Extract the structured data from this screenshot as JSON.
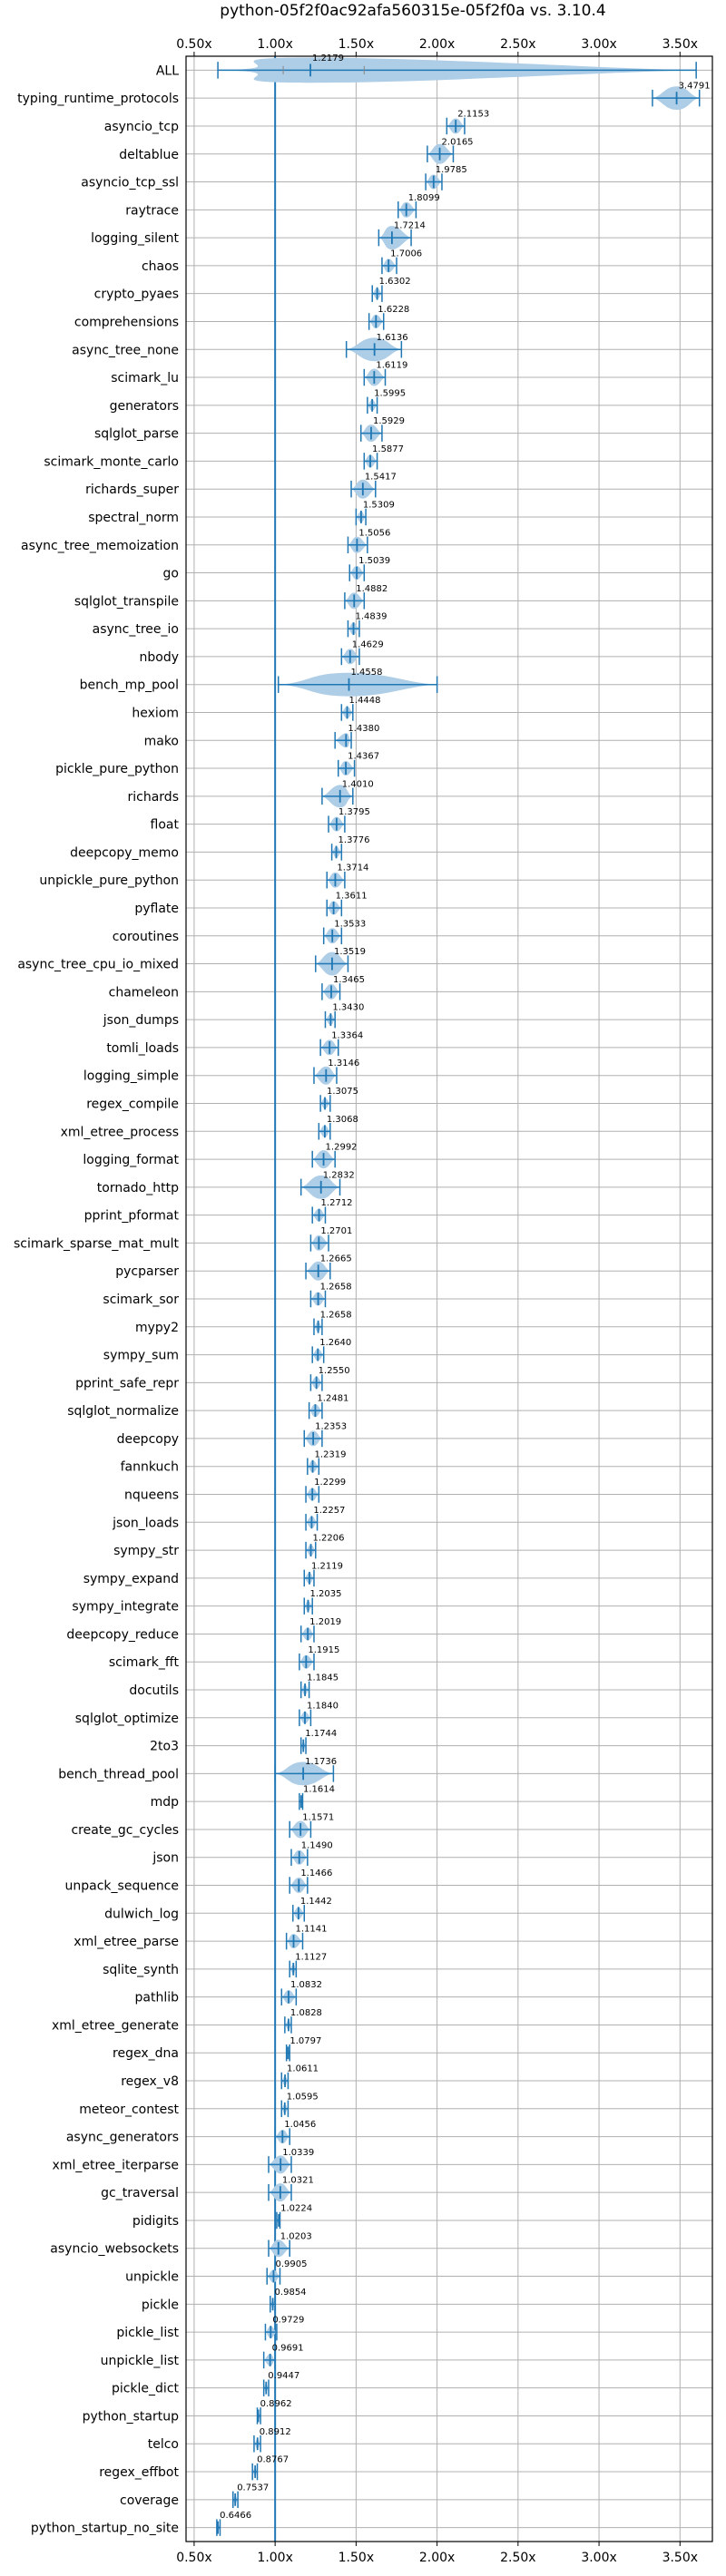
{
  "chart_data": {
    "type": "violin",
    "title": "python-05f2f0ac92afa560315e-05f2f0a vs. 3.10.4",
    "xlim": [
      0.45,
      3.7
    ],
    "xticks": [
      0.5,
      1.0,
      1.5,
      2.0,
      2.5,
      3.0,
      3.5
    ],
    "xtick_labels": [
      "0.50x",
      "1.00x",
      "1.50x",
      "2.00x",
      "2.50x",
      "3.00x",
      "3.50x"
    ],
    "reference_line": 1.0,
    "grid": true,
    "series_color": "#1f77b4",
    "violin_color": "#aecde6",
    "rows": [
      {
        "name": "ALL",
        "value": 1.2179,
        "value_label": "1.2179",
        "min": 0.6466,
        "max": 3.6,
        "q1": 1.05,
        "q3": 1.55
      },
      {
        "name": "typing_runtime_protocols",
        "value": 3.4791,
        "value_label": "3.4791",
        "min": 3.33,
        "max": 3.62
      },
      {
        "name": "asyncio_tcp",
        "value": 2.1153,
        "value_label": "2.1153",
        "min": 2.06,
        "max": 2.17
      },
      {
        "name": "deltablue",
        "value": 2.0165,
        "value_label": "2.0165",
        "min": 1.94,
        "max": 2.1
      },
      {
        "name": "asyncio_tcp_ssl",
        "value": 1.9785,
        "value_label": "1.9785",
        "min": 1.93,
        "max": 2.03
      },
      {
        "name": "raytrace",
        "value": 1.8099,
        "value_label": "1.8099",
        "min": 1.76,
        "max": 1.87
      },
      {
        "name": "logging_silent",
        "value": 1.7214,
        "value_label": "1.7214",
        "min": 1.64,
        "max": 1.84
      },
      {
        "name": "chaos",
        "value": 1.7006,
        "value_label": "1.7006",
        "min": 1.66,
        "max": 1.75
      },
      {
        "name": "crypto_pyaes",
        "value": 1.6302,
        "value_label": "1.6302",
        "min": 1.6,
        "max": 1.66
      },
      {
        "name": "comprehensions",
        "value": 1.6228,
        "value_label": "1.6228",
        "min": 1.58,
        "max": 1.67
      },
      {
        "name": "async_tree_none",
        "value": 1.6136,
        "value_label": "1.6136",
        "min": 1.44,
        "max": 1.78
      },
      {
        "name": "scimark_lu",
        "value": 1.6119,
        "value_label": "1.6119",
        "min": 1.55,
        "max": 1.68
      },
      {
        "name": "generators",
        "value": 1.5995,
        "value_label": "1.5995",
        "min": 1.57,
        "max": 1.63
      },
      {
        "name": "sqlglot_parse",
        "value": 1.5929,
        "value_label": "1.5929",
        "min": 1.53,
        "max": 1.66
      },
      {
        "name": "scimark_monte_carlo",
        "value": 1.5877,
        "value_label": "1.5877",
        "min": 1.55,
        "max": 1.63
      },
      {
        "name": "richards_super",
        "value": 1.5417,
        "value_label": "1.5417",
        "min": 1.47,
        "max": 1.62
      },
      {
        "name": "spectral_norm",
        "value": 1.5309,
        "value_label": "1.5309",
        "min": 1.5,
        "max": 1.56
      },
      {
        "name": "async_tree_memoization",
        "value": 1.5056,
        "value_label": "1.5056",
        "min": 1.45,
        "max": 1.57
      },
      {
        "name": "go",
        "value": 1.5039,
        "value_label": "1.5039",
        "min": 1.46,
        "max": 1.55
      },
      {
        "name": "sqlglot_transpile",
        "value": 1.4882,
        "value_label": "1.4882",
        "min": 1.43,
        "max": 1.55
      },
      {
        "name": "async_tree_io",
        "value": 1.4839,
        "value_label": "1.4839",
        "min": 1.45,
        "max": 1.52
      },
      {
        "name": "nbody",
        "value": 1.4629,
        "value_label": "1.4629",
        "min": 1.41,
        "max": 1.52
      },
      {
        "name": "bench_mp_pool",
        "value": 1.4558,
        "value_label": "1.4558",
        "min": 1.02,
        "max": 2.0
      },
      {
        "name": "hexiom",
        "value": 1.4448,
        "value_label": "1.4448",
        "min": 1.41,
        "max": 1.48
      },
      {
        "name": "mako",
        "value": 1.438,
        "value_label": "1.4380",
        "min": 1.37,
        "max": 1.47
      },
      {
        "name": "pickle_pure_python",
        "value": 1.4367,
        "value_label": "1.4367",
        "min": 1.39,
        "max": 1.49
      },
      {
        "name": "richards",
        "value": 1.401,
        "value_label": "1.4010",
        "min": 1.29,
        "max": 1.48
      },
      {
        "name": "float",
        "value": 1.3795,
        "value_label": "1.3795",
        "min": 1.33,
        "max": 1.43
      },
      {
        "name": "deepcopy_memo",
        "value": 1.3776,
        "value_label": "1.3776",
        "min": 1.35,
        "max": 1.41
      },
      {
        "name": "unpickle_pure_python",
        "value": 1.3714,
        "value_label": "1.3714",
        "min": 1.32,
        "max": 1.43
      },
      {
        "name": "pyflate",
        "value": 1.3611,
        "value_label": "1.3611",
        "min": 1.32,
        "max": 1.41
      },
      {
        "name": "coroutines",
        "value": 1.3533,
        "value_label": "1.3533",
        "min": 1.3,
        "max": 1.41
      },
      {
        "name": "async_tree_cpu_io_mixed",
        "value": 1.3519,
        "value_label": "1.3519",
        "min": 1.25,
        "max": 1.45
      },
      {
        "name": "chameleon",
        "value": 1.3465,
        "value_label": "1.3465",
        "min": 1.29,
        "max": 1.4
      },
      {
        "name": "json_dumps",
        "value": 1.343,
        "value_label": "1.3430",
        "min": 1.31,
        "max": 1.37
      },
      {
        "name": "tomli_loads",
        "value": 1.3364,
        "value_label": "1.3364",
        "min": 1.28,
        "max": 1.39
      },
      {
        "name": "logging_simple",
        "value": 1.3146,
        "value_label": "1.3146",
        "min": 1.24,
        "max": 1.38
      },
      {
        "name": "regex_compile",
        "value": 1.3075,
        "value_label": "1.3075",
        "min": 1.28,
        "max": 1.34
      },
      {
        "name": "xml_etree_process",
        "value": 1.3068,
        "value_label": "1.3068",
        "min": 1.27,
        "max": 1.34
      },
      {
        "name": "logging_format",
        "value": 1.2992,
        "value_label": "1.2992",
        "min": 1.23,
        "max": 1.37
      },
      {
        "name": "tornado_http",
        "value": 1.2832,
        "value_label": "1.2832",
        "min": 1.16,
        "max": 1.4
      },
      {
        "name": "pprint_pformat",
        "value": 1.2712,
        "value_label": "1.2712",
        "min": 1.23,
        "max": 1.31
      },
      {
        "name": "scimark_sparse_mat_mult",
        "value": 1.2701,
        "value_label": "1.2701",
        "min": 1.22,
        "max": 1.33
      },
      {
        "name": "pycparser",
        "value": 1.2665,
        "value_label": "1.2665",
        "min": 1.19,
        "max": 1.34
      },
      {
        "name": "scimark_sor",
        "value": 1.2658,
        "value_label": "1.2658",
        "min": 1.22,
        "max": 1.31
      },
      {
        "name": "mypy2",
        "value": 1.2658,
        "value_label": "1.2658",
        "min": 1.24,
        "max": 1.29
      },
      {
        "name": "sympy_sum",
        "value": 1.264,
        "value_label": "1.2640",
        "min": 1.23,
        "max": 1.3
      },
      {
        "name": "pprint_safe_repr",
        "value": 1.255,
        "value_label": "1.2550",
        "min": 1.22,
        "max": 1.29
      },
      {
        "name": "sqlglot_normalize",
        "value": 1.2481,
        "value_label": "1.2481",
        "min": 1.21,
        "max": 1.29
      },
      {
        "name": "deepcopy",
        "value": 1.2353,
        "value_label": "1.2353",
        "min": 1.18,
        "max": 1.29
      },
      {
        "name": "fannkuch",
        "value": 1.2319,
        "value_label": "1.2319",
        "min": 1.2,
        "max": 1.27
      },
      {
        "name": "nqueens",
        "value": 1.2299,
        "value_label": "1.2299",
        "min": 1.19,
        "max": 1.27
      },
      {
        "name": "json_loads",
        "value": 1.2257,
        "value_label": "1.2257",
        "min": 1.19,
        "max": 1.26
      },
      {
        "name": "sympy_str",
        "value": 1.2206,
        "value_label": "1.2206",
        "min": 1.19,
        "max": 1.25
      },
      {
        "name": "sympy_expand",
        "value": 1.2119,
        "value_label": "1.2119",
        "min": 1.18,
        "max": 1.24
      },
      {
        "name": "sympy_integrate",
        "value": 1.2035,
        "value_label": "1.2035",
        "min": 1.18,
        "max": 1.23
      },
      {
        "name": "deepcopy_reduce",
        "value": 1.2019,
        "value_label": "1.2019",
        "min": 1.16,
        "max": 1.24
      },
      {
        "name": "scimark_fft",
        "value": 1.1915,
        "value_label": "1.1915",
        "min": 1.15,
        "max": 1.24
      },
      {
        "name": "docutils",
        "value": 1.1845,
        "value_label": "1.1845",
        "min": 1.16,
        "max": 1.21
      },
      {
        "name": "sqlglot_optimize",
        "value": 1.184,
        "value_label": "1.1840",
        "min": 1.15,
        "max": 1.22
      },
      {
        "name": "2to3",
        "value": 1.1744,
        "value_label": "1.1744",
        "min": 1.16,
        "max": 1.19
      },
      {
        "name": "bench_thread_pool",
        "value": 1.1736,
        "value_label": "1.1736",
        "min": 1.0,
        "max": 1.36
      },
      {
        "name": "mdp",
        "value": 1.1614,
        "value_label": "1.1614",
        "min": 1.15,
        "max": 1.17
      },
      {
        "name": "create_gc_cycles",
        "value": 1.1571,
        "value_label": "1.1571",
        "min": 1.09,
        "max": 1.22
      },
      {
        "name": "json",
        "value": 1.149,
        "value_label": "1.1490",
        "min": 1.1,
        "max": 1.2
      },
      {
        "name": "unpack_sequence",
        "value": 1.1466,
        "value_label": "1.1466",
        "min": 1.09,
        "max": 1.2
      },
      {
        "name": "dulwich_log",
        "value": 1.1442,
        "value_label": "1.1442",
        "min": 1.11,
        "max": 1.18
      },
      {
        "name": "xml_etree_parse",
        "value": 1.1141,
        "value_label": "1.1141",
        "min": 1.07,
        "max": 1.17
      },
      {
        "name": "sqlite_synth",
        "value": 1.1127,
        "value_label": "1.1127",
        "min": 1.09,
        "max": 1.13
      },
      {
        "name": "pathlib",
        "value": 1.0832,
        "value_label": "1.0832",
        "min": 1.04,
        "max": 1.13
      },
      {
        "name": "xml_etree_generate",
        "value": 1.0828,
        "value_label": "1.0828",
        "min": 1.06,
        "max": 1.1
      },
      {
        "name": "regex_dna",
        "value": 1.0797,
        "value_label": "1.0797",
        "min": 1.07,
        "max": 1.09
      },
      {
        "name": "regex_v8",
        "value": 1.0611,
        "value_label": "1.0611",
        "min": 1.04,
        "max": 1.08
      },
      {
        "name": "meteor_contest",
        "value": 1.0595,
        "value_label": "1.0595",
        "min": 1.04,
        "max": 1.08
      },
      {
        "name": "async_generators",
        "value": 1.0456,
        "value_label": "1.0456",
        "min": 1.0,
        "max": 1.09
      },
      {
        "name": "xml_etree_iterparse",
        "value": 1.0339,
        "value_label": "1.0339",
        "min": 0.96,
        "max": 1.1
      },
      {
        "name": "gc_traversal",
        "value": 1.0321,
        "value_label": "1.0321",
        "min": 0.96,
        "max": 1.1
      },
      {
        "name": "pidigits",
        "value": 1.0224,
        "value_label": "1.0224",
        "min": 1.01,
        "max": 1.03
      },
      {
        "name": "asyncio_websockets",
        "value": 1.0203,
        "value_label": "1.0203",
        "min": 0.96,
        "max": 1.09
      },
      {
        "name": "unpickle",
        "value": 0.9905,
        "value_label": "0.9905",
        "min": 0.95,
        "max": 1.03
      },
      {
        "name": "pickle",
        "value": 0.9854,
        "value_label": "0.9854",
        "min": 0.97,
        "max": 1.0
      },
      {
        "name": "pickle_list",
        "value": 0.9729,
        "value_label": "0.9729",
        "min": 0.94,
        "max": 1.01
      },
      {
        "name": "unpickle_list",
        "value": 0.9691,
        "value_label": "0.9691",
        "min": 0.93,
        "max": 1.0
      },
      {
        "name": "pickle_dict",
        "value": 0.9447,
        "value_label": "0.9447",
        "min": 0.93,
        "max": 0.96
      },
      {
        "name": "python_startup",
        "value": 0.8962,
        "value_label": "0.8962",
        "min": 0.89,
        "max": 0.91
      },
      {
        "name": "telco",
        "value": 0.8912,
        "value_label": "0.8912",
        "min": 0.87,
        "max": 0.91
      },
      {
        "name": "regex_effbot",
        "value": 0.8767,
        "value_label": "0.8767",
        "min": 0.86,
        "max": 0.89
      },
      {
        "name": "coverage",
        "value": 0.7537,
        "value_label": "0.7537",
        "min": 0.74,
        "max": 0.77
      },
      {
        "name": "python_startup_no_site",
        "value": 0.6466,
        "value_label": "0.6466",
        "min": 0.64,
        "max": 0.66
      }
    ]
  }
}
